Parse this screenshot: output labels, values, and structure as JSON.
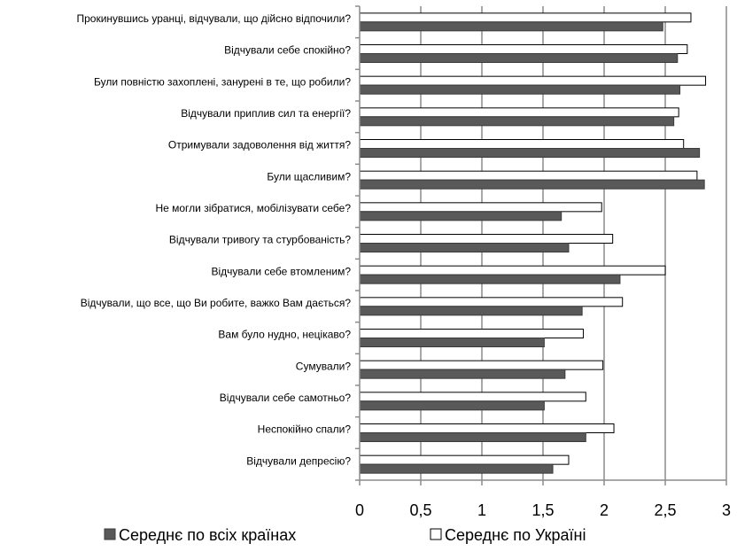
{
  "chart_data": {
    "type": "bar",
    "orientation": "horizontal",
    "categories": [
      "Прокинувшись уранці, відчували, що дійсно відпочили?",
      "Відчували себе спокійно?",
      "Були повністю захоплені, занурені в те, що робили?",
      "Відчували приплив сил та енергії?",
      "Отримували задоволення від життя?",
      "Були щасливим?",
      "Не могли зібратися, мобілізувати себе?",
      "Відчували тривогу та стурбованість?",
      "Відчували себе втомленим?",
      "Відчували, що все, що Ви робите, важко Вам дається?",
      "Вам було нудно, нецікаво?",
      "Сумували?",
      "Відчували себе самотньо?",
      "Неспокійно спали?",
      "Відчували депресію?"
    ],
    "series": [
      {
        "name": "Середнє по всіх країнах",
        "color": "#595959",
        "values": [
          2.48,
          2.6,
          2.62,
          2.57,
          2.78,
          2.82,
          1.65,
          1.71,
          2.13,
          1.82,
          1.51,
          1.68,
          1.51,
          1.85,
          1.58
        ]
      },
      {
        "name": "Середнє по Україні",
        "color": "#ffffff",
        "values": [
          2.71,
          2.68,
          2.83,
          2.61,
          2.65,
          2.76,
          1.98,
          2.07,
          2.5,
          2.15,
          1.83,
          1.99,
          1.85,
          2.08,
          1.71
        ]
      }
    ],
    "xlim": [
      0,
      3
    ],
    "xticks": [
      "0",
      "0,5",
      "1",
      "1,5",
      "2",
      "2,5",
      "3"
    ],
    "xtick_values": [
      0,
      0.5,
      1,
      1.5,
      2,
      2.5,
      3
    ],
    "grid": true,
    "legend_position": "bottom"
  }
}
